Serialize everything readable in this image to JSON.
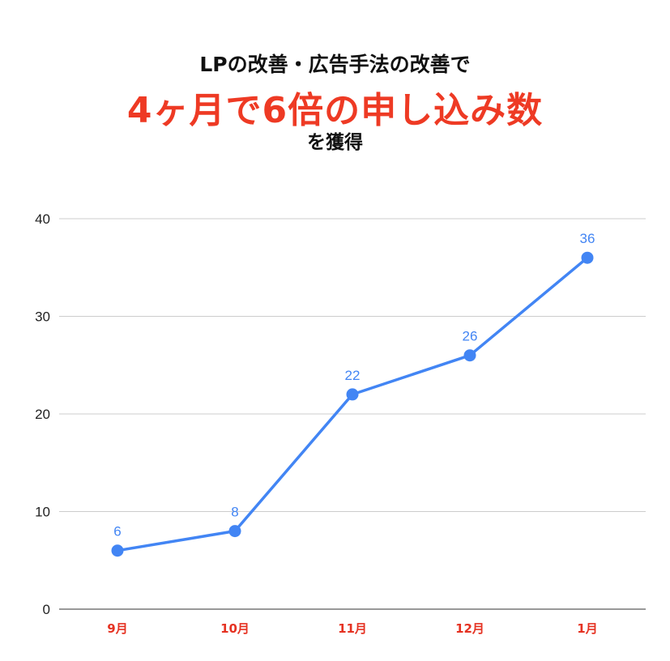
{
  "header": {
    "line1": "LPの改善・広告手法の改善で",
    "line2": "4ヶ月で6倍の申し込み数",
    "line3": "を獲得"
  },
  "colors": {
    "series": "#4285f4",
    "xtick": "#e53222",
    "headline": "#ee3a24",
    "grid": "#cccccc"
  },
  "chart_data": {
    "type": "line",
    "categories": [
      "9月",
      "10月",
      "11月",
      "12月",
      "1月"
    ],
    "series": [
      {
        "values": [
          6,
          8,
          22,
          26,
          36
        ]
      }
    ],
    "yticks": [
      "0",
      "10",
      "20",
      "30",
      "40"
    ],
    "ylim": [
      0,
      40
    ],
    "grid": true,
    "data_labels": true,
    "legend": "none"
  }
}
